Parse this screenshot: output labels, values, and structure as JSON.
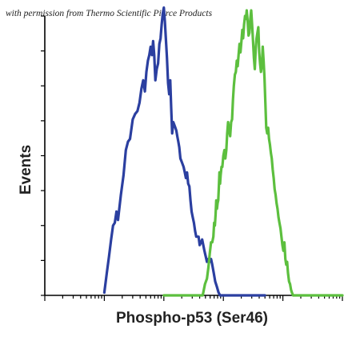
{
  "credit_text": "with permission from Thermo Scientific Pierce Products",
  "chart_data": {
    "type": "line",
    "xlabel": "Phospho-p53 (Ser46)",
    "ylabel": "Events",
    "x_scale": "log",
    "xlim": [
      1,
      100000
    ],
    "ylim": [
      0,
      100
    ],
    "grid": false,
    "legend": "none",
    "series": [
      {
        "color": "#2b3fa0",
        "points": [
          [
            10,
            1
          ],
          [
            11,
            8
          ],
          [
            12,
            14
          ],
          [
            13,
            20
          ],
          [
            14,
            25
          ],
          [
            15,
            26
          ],
          [
            16,
            30
          ],
          [
            17,
            27
          ],
          [
            19,
            36
          ],
          [
            21,
            43
          ],
          [
            23,
            52
          ],
          [
            25,
            55
          ],
          [
            27,
            56
          ],
          [
            30,
            63
          ],
          [
            33,
            65
          ],
          [
            36,
            66
          ],
          [
            39,
            69
          ],
          [
            42,
            74
          ],
          [
            45,
            77
          ],
          [
            48,
            73
          ],
          [
            51,
            80
          ],
          [
            54,
            84
          ],
          [
            57,
            86
          ],
          [
            60,
            89
          ],
          [
            63,
            86
          ],
          [
            66,
            91
          ],
          [
            69,
            86
          ],
          [
            72,
            77
          ],
          [
            76,
            81
          ],
          [
            80,
            83
          ],
          [
            84,
            90
          ],
          [
            88,
            92
          ],
          [
            92,
            97
          ],
          [
            96,
            101
          ],
          [
            100,
            103
          ],
          [
            104,
            98
          ],
          [
            108,
            92
          ],
          [
            113,
            85
          ],
          [
            118,
            76
          ],
          [
            123,
            72
          ],
          [
            128,
            77
          ],
          [
            133,
            67
          ],
          [
            138,
            58
          ],
          [
            144,
            62
          ],
          [
            150,
            61
          ],
          [
            156,
            60
          ],
          [
            162,
            59
          ],
          [
            168,
            57
          ],
          [
            175,
            55
          ],
          [
            182,
            53
          ],
          [
            190,
            49
          ],
          [
            198,
            48
          ],
          [
            206,
            47
          ],
          [
            215,
            46
          ],
          [
            225,
            44
          ],
          [
            235,
            42
          ],
          [
            245,
            44
          ],
          [
            256,
            40
          ],
          [
            268,
            39
          ],
          [
            280,
            34
          ],
          [
            293,
            30
          ],
          [
            306,
            28
          ],
          [
            320,
            26
          ],
          [
            335,
            23
          ],
          [
            350,
            21
          ],
          [
            366,
            21
          ],
          [
            383,
            21
          ],
          [
            400,
            18
          ],
          [
            420,
            19
          ],
          [
            440,
            20
          ],
          [
            460,
            18
          ],
          [
            480,
            16
          ],
          [
            505,
            14
          ],
          [
            530,
            12
          ],
          [
            560,
            13
          ],
          [
            590,
            12
          ],
          [
            620,
            13
          ],
          [
            650,
            11
          ],
          [
            690,
            8
          ],
          [
            730,
            5
          ],
          [
            780,
            3
          ],
          [
            830,
            1
          ],
          [
            880,
            0
          ],
          [
            1000,
            0
          ],
          [
            2000,
            0
          ],
          [
            5000,
            0
          ]
        ]
      },
      {
        "color": "#5cbf3e",
        "points": [
          [
            100,
            0
          ],
          [
            200,
            0
          ],
          [
            450,
            0
          ],
          [
            470,
            2
          ],
          [
            490,
            4
          ],
          [
            510,
            5
          ],
          [
            530,
            6
          ],
          [
            560,
            10
          ],
          [
            590,
            15
          ],
          [
            620,
            19
          ],
          [
            650,
            19
          ],
          [
            680,
            21
          ],
          [
            700,
            26
          ],
          [
            720,
            25
          ],
          [
            740,
            29
          ],
          [
            760,
            34
          ],
          [
            780,
            31
          ],
          [
            800,
            33
          ],
          [
            820,
            34
          ],
          [
            840,
            39
          ],
          [
            860,
            44
          ],
          [
            880,
            40
          ],
          [
            900,
            43
          ],
          [
            930,
            46
          ],
          [
            960,
            46
          ],
          [
            1000,
            50
          ],
          [
            1040,
            52
          ],
          [
            1080,
            49
          ],
          [
            1120,
            52
          ],
          [
            1160,
            58
          ],
          [
            1200,
            62
          ],
          [
            1250,
            59
          ],
          [
            1300,
            57
          ],
          [
            1350,
            62
          ],
          [
            1400,
            63
          ],
          [
            1450,
            70
          ],
          [
            1500,
            75
          ],
          [
            1560,
            79
          ],
          [
            1620,
            80
          ],
          [
            1680,
            84
          ],
          [
            1740,
            82
          ],
          [
            1800,
            86
          ],
          [
            1870,
            90
          ],
          [
            1940,
            87
          ],
          [
            2010,
            91
          ],
          [
            2080,
            95
          ],
          [
            2150,
            92
          ],
          [
            2230,
            97
          ],
          [
            2310,
            100
          ],
          [
            2390,
            99
          ],
          [
            2470,
            102
          ],
          [
            2560,
            98
          ],
          [
            2650,
            93
          ],
          [
            2740,
            94
          ],
          [
            2840,
            99
          ],
          [
            2940,
            102
          ],
          [
            3040,
            97
          ],
          [
            3150,
            91
          ],
          [
            3260,
            85
          ],
          [
            3370,
            81
          ],
          [
            3490,
            88
          ],
          [
            3610,
            92
          ],
          [
            3740,
            94
          ],
          [
            3870,
            96
          ],
          [
            4000,
            87
          ],
          [
            4140,
            83
          ],
          [
            4280,
            80
          ],
          [
            4430,
            82
          ],
          [
            4580,
            89
          ],
          [
            4740,
            84
          ],
          [
            4900,
            78
          ],
          [
            5080,
            69
          ],
          [
            5260,
            60
          ],
          [
            5450,
            58
          ],
          [
            5650,
            60
          ],
          [
            5850,
            56
          ],
          [
            6060,
            54
          ],
          [
            6280,
            51
          ],
          [
            6510,
            49
          ],
          [
            6750,
            45
          ],
          [
            7000,
            42
          ],
          [
            7260,
            38
          ],
          [
            7540,
            36
          ],
          [
            7830,
            33
          ],
          [
            8130,
            31
          ],
          [
            8440,
            28
          ],
          [
            8760,
            26
          ],
          [
            9100,
            24
          ],
          [
            9450,
            21
          ],
          [
            9820,
            18
          ],
          [
            10200,
            16
          ],
          [
            10600,
            19
          ],
          [
            11000,
            13
          ],
          [
            11400,
            11
          ],
          [
            11800,
            12
          ],
          [
            12200,
            8
          ],
          [
            12700,
            5
          ],
          [
            13200,
            4
          ],
          [
            13700,
            2
          ],
          [
            14200,
            1
          ],
          [
            14800,
            0
          ],
          [
            20000,
            0
          ],
          [
            50000,
            0
          ],
          [
            100000,
            0
          ]
        ]
      }
    ]
  }
}
